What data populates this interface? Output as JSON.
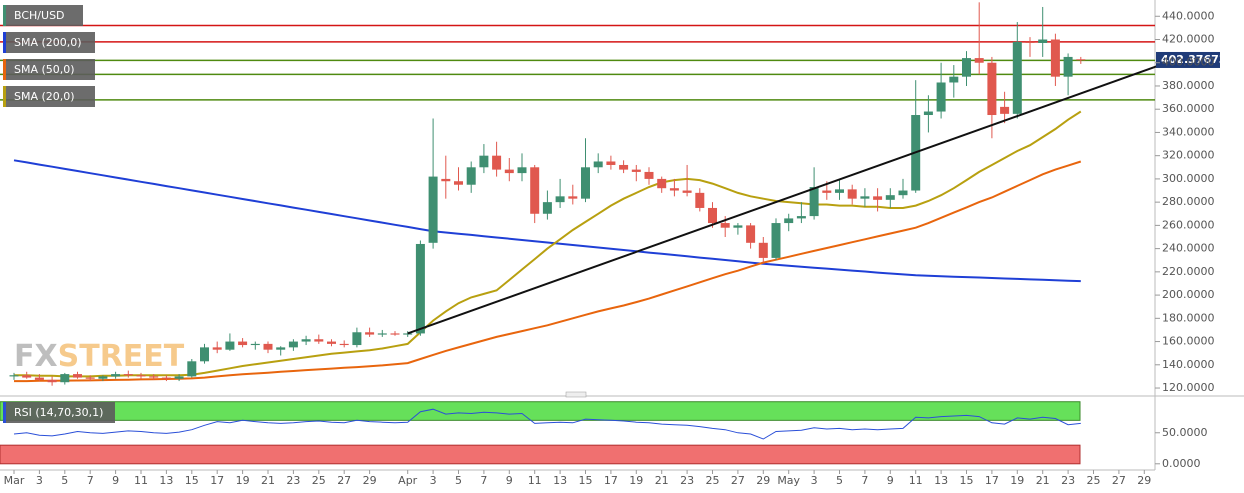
{
  "chart_data": {
    "type": "candlestick",
    "categories": [
      "Mar",
      null,
      "3",
      null,
      "5",
      null,
      "7",
      null,
      "9",
      null,
      "11",
      null,
      "13",
      null,
      "15",
      null,
      "17",
      null,
      "19",
      null,
      "21",
      null,
      "23",
      null,
      "25",
      null,
      "27",
      null,
      "29",
      null,
      null,
      "Apr",
      null,
      "3",
      null,
      "5",
      null,
      "7",
      null,
      "9",
      null,
      "11",
      null,
      "13",
      null,
      "15",
      null,
      "17",
      null,
      "19",
      null,
      "21",
      null,
      "23",
      null,
      "25",
      null,
      "27",
      null,
      "29",
      null,
      "May",
      null,
      "3",
      null,
      "5",
      null,
      "7",
      null,
      "9",
      null,
      "11",
      null,
      "13",
      null,
      "15",
      null,
      "17",
      null,
      "19",
      null,
      "21",
      null,
      "23",
      null,
      "25",
      null,
      "27",
      null,
      "29"
    ],
    "ohlc": {
      "name": "BCH/USD",
      "up_color": "#3f8f71",
      "down_color": "#e0584e",
      "open": [
        130,
        131,
        129,
        127,
        125,
        132,
        129,
        128,
        130,
        132,
        131,
        130,
        129,
        128,
        130,
        143,
        155,
        153,
        160,
        157,
        158,
        153,
        155,
        160,
        162,
        160,
        158,
        157,
        168,
        166,
        167,
        166,
        167,
        245,
        300,
        298,
        295,
        310,
        320,
        308,
        305,
        310,
        270,
        280,
        285,
        283,
        310,
        315,
        312,
        308,
        306,
        300,
        292,
        290,
        288,
        275,
        262,
        258,
        260,
        245,
        232,
        262,
        266,
        268,
        290,
        288,
        291,
        283,
        285,
        282,
        286,
        290,
        355,
        358,
        383,
        388,
        404,
        400,
        362,
        356,
        418,
        417,
        420,
        388,
        403,
        null,
        null,
        null,
        null,
        null
      ],
      "high": [
        133,
        134,
        132,
        130,
        133,
        134,
        131,
        131,
        134,
        135,
        133,
        132,
        131,
        132,
        145,
        158,
        160,
        167,
        163,
        160,
        160,
        156,
        162,
        165,
        166,
        162,
        161,
        172,
        172,
        170,
        169,
        169,
        247,
        352,
        320,
        310,
        315,
        330,
        332,
        318,
        322,
        312,
        290,
        300,
        295,
        335,
        322,
        320,
        316,
        312,
        310,
        302,
        300,
        312,
        292,
        280,
        268,
        262,
        262,
        250,
        266,
        270,
        280,
        310,
        298,
        300,
        295,
        292,
        292,
        292,
        300,
        385,
        372,
        400,
        398,
        410,
        452,
        405,
        375,
        435,
        422,
        448,
        425,
        408,
        405,
        null,
        null,
        null,
        null,
        null
      ],
      "low": [
        127,
        128,
        126,
        122,
        123,
        128,
        126,
        126,
        128,
        129,
        128,
        127,
        126,
        126,
        129,
        141,
        150,
        152,
        155,
        153,
        150,
        148,
        152,
        157,
        158,
        156,
        155,
        155,
        164,
        164,
        165,
        164,
        165,
        240,
        283,
        290,
        288,
        305,
        302,
        298,
        298,
        262,
        265,
        275,
        278,
        280,
        305,
        308,
        305,
        298,
        295,
        288,
        285,
        285,
        272,
        258,
        250,
        252,
        240,
        228,
        230,
        255,
        262,
        265,
        282,
        282,
        278,
        276,
        272,
        275,
        283,
        288,
        340,
        352,
        370,
        380,
        390,
        335,
        348,
        352,
        405,
        405,
        380,
        372,
        399,
        null,
        null,
        null,
        null,
        null
      ],
      "close": [
        131,
        129,
        127,
        125,
        132,
        129,
        128,
        130,
        132,
        131,
        130,
        129,
        128,
        130,
        143,
        155,
        153,
        160,
        157,
        158,
        153,
        155,
        160,
        162,
        160,
        158,
        157,
        168,
        166,
        167,
        166,
        167,
        244,
        302,
        298,
        295,
        310,
        320,
        308,
        305,
        310,
        270,
        280,
        285,
        283,
        310,
        315,
        312,
        308,
        306,
        300,
        292,
        290,
        288,
        275,
        262,
        258,
        260,
        245,
        232,
        262,
        266,
        268,
        293,
        288,
        291,
        283,
        285,
        282,
        286,
        290,
        355,
        358,
        383,
        388,
        404,
        400,
        355,
        356,
        418,
        417,
        420,
        388,
        405,
        402.37673,
        null,
        null,
        null,
        null,
        null
      ]
    },
    "series": [
      {
        "name": "SMA (200,0)",
        "color": "#1f3fd6",
        "values": [
          316,
          314.2,
          312.3,
          310.5,
          308.6,
          306.8,
          304.9,
          303.1,
          301.2,
          299.4,
          297.5,
          295.7,
          293.8,
          292,
          290.1,
          288.3,
          286.4,
          284.6,
          282.7,
          280.9,
          279,
          277.2,
          275.3,
          273.5,
          271.6,
          269.8,
          267.9,
          266.1,
          264.2,
          262.4,
          260.5,
          258.7,
          256.8,
          255,
          253.9,
          252.8,
          251.8,
          250.7,
          249.6,
          248.5,
          247.4,
          246.4,
          245.3,
          244.2,
          243.1,
          242,
          241,
          239.9,
          238.8,
          237.7,
          236.6,
          235.6,
          234.5,
          233.4,
          232.3,
          231.2,
          230.2,
          229.1,
          228,
          226.9,
          226.1,
          225.2,
          224.4,
          223.6,
          222.8,
          221.9,
          221.1,
          220.3,
          219.4,
          218.6,
          217.8,
          217,
          216.6,
          216.2,
          215.8,
          215.5,
          215.1,
          214.7,
          214.3,
          213.9,
          213.5,
          213.2,
          212.8,
          212.4,
          212,
          null,
          null,
          null,
          null,
          null
        ]
      },
      {
        "name": "SMA (50,0)",
        "color": "#e8650d",
        "values": [
          126,
          126,
          126.2,
          126.3,
          126.4,
          126.5,
          126.6,
          126.8,
          127,
          127.2,
          127.4,
          127.6,
          127.8,
          128,
          128.3,
          129,
          130,
          131,
          131.8,
          132.5,
          133.2,
          134,
          134.7,
          135.4,
          136,
          136.7,
          137.4,
          138,
          138.8,
          139.5,
          140.5,
          141.5,
          145,
          148.5,
          152,
          155,
          158,
          161,
          164,
          166.5,
          169,
          171.5,
          174,
          177,
          180,
          183,
          186,
          188.5,
          191,
          194,
          197,
          200.5,
          204,
          207.5,
          211,
          214.5,
          218,
          221,
          224.5,
          228,
          230.5,
          233,
          235.5,
          238,
          240.5,
          243,
          245.5,
          248,
          250.5,
          253,
          255.5,
          258,
          262,
          266.5,
          271,
          275.5,
          280,
          284,
          289,
          294,
          299,
          304,
          308,
          311.5,
          315,
          null,
          null,
          null,
          null,
          null
        ]
      },
      {
        "name": "SMA (20,0)",
        "color": "#b8a010",
        "values": [
          131,
          131,
          130.5,
          130.5,
          130,
          130,
          130,
          130.5,
          130.5,
          131,
          131,
          131,
          131,
          131,
          131.5,
          133,
          135,
          137,
          139,
          140.5,
          142,
          143.5,
          145,
          146.5,
          148,
          149.5,
          150.5,
          151.5,
          152.5,
          154,
          156,
          158,
          168,
          178,
          186,
          193,
          198,
          201,
          204,
          213,
          222,
          231,
          240,
          248,
          256,
          263,
          270,
          277,
          283,
          288,
          293,
          297,
          299,
          300,
          299,
          296,
          292,
          288,
          285,
          283,
          281,
          280,
          279,
          278,
          278,
          277,
          277,
          276,
          276,
          275,
          275,
          277,
          281,
          286,
          292,
          299,
          306,
          312,
          318,
          324,
          329,
          336,
          343,
          351,
          358,
          null,
          null,
          null,
          null,
          null
        ]
      }
    ],
    "levels": [
      {
        "value": 432,
        "color": "#d41515"
      },
      {
        "value": 418,
        "color": "#d41515"
      },
      {
        "value": 402,
        "color": "#4f8a10"
      },
      {
        "value": 390,
        "color": "#4f8a10"
      },
      {
        "value": 368,
        "color": "#4f8a10"
      }
    ],
    "trendline": {
      "x": [
        31,
        90
      ],
      "y": [
        167,
        397
      ],
      "color": "#111111"
    },
    "ylim": [
      114,
      454
    ],
    "yticks": [
      {
        "value": 120,
        "label": "120.0000"
      },
      {
        "value": 140,
        "label": "140.0000"
      },
      {
        "value": 160,
        "label": "160.0000"
      },
      {
        "value": 180,
        "label": "180.0000"
      },
      {
        "value": 200,
        "label": "200.0000"
      },
      {
        "value": 220,
        "label": "220.0000"
      },
      {
        "value": 240,
        "label": "240.0000"
      },
      {
        "value": 260,
        "label": "260.0000"
      },
      {
        "value": 280,
        "label": "280.0000"
      },
      {
        "value": 300,
        "label": "300.0000"
      },
      {
        "value": 320,
        "label": "320.0000"
      },
      {
        "value": 340,
        "label": "340.0000"
      },
      {
        "value": 360,
        "label": "360.0000"
      },
      {
        "value": 380,
        "label": "380.0000"
      },
      {
        "value": 400,
        "label": "400.0000"
      },
      {
        "value": 420,
        "label": "420.0000"
      },
      {
        "value": 440,
        "label": "440.0000"
      }
    ],
    "rsi": {
      "name": "RSI (14,70,30,1)",
      "color": "#2a4fd8",
      "values": [
        48,
        50,
        46,
        45,
        48,
        52,
        50,
        49,
        51,
        53,
        52,
        50,
        49,
        51,
        55,
        62,
        68,
        66,
        70,
        68,
        66,
        65,
        66,
        68,
        69,
        67,
        66,
        70,
        68,
        67,
        66,
        67,
        84,
        88,
        80,
        82,
        81,
        83,
        82,
        80,
        81,
        65,
        66,
        67,
        66,
        72,
        71,
        70,
        69,
        67,
        66,
        64,
        63,
        62,
        60,
        57,
        55,
        50,
        48,
        40,
        52,
        53,
        54,
        58,
        56,
        57,
        55,
        56,
        55,
        56,
        57,
        75,
        74,
        76,
        77,
        78,
        76,
        66,
        64,
        74,
        72,
        75,
        73,
        63,
        65,
        null,
        null,
        null,
        null,
        null
      ],
      "ylim": [
        -10,
        106
      ],
      "yticks": [
        {
          "value": 0,
          "label": "0.0000"
        },
        {
          "value": 50,
          "label": "50.0000"
        }
      ],
      "overbought": [
        70,
        100
      ],
      "overbought_color": "#66e05a",
      "oversold": [
        0,
        30
      ],
      "oversold_color": "#f07070"
    },
    "last_price_color": "#1f3b78",
    "watermark": [
      "FX",
      "STREET"
    ]
  }
}
